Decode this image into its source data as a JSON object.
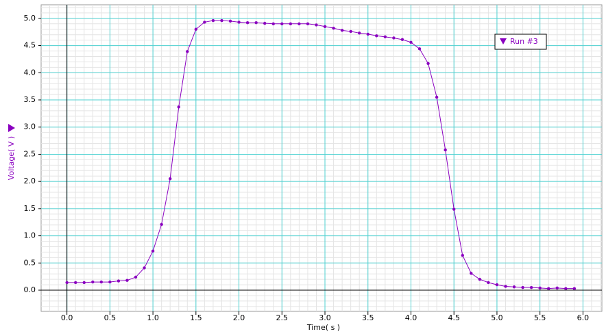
{
  "chart_data": {
    "type": "line",
    "x_label": "Time( s )",
    "y_label": "Voltage( V )",
    "x": [
      0.0,
      0.1,
      0.2,
      0.3,
      0.4,
      0.5,
      0.6,
      0.7,
      0.8,
      0.9,
      1.0,
      1.1,
      1.2,
      1.3,
      1.4,
      1.5,
      1.6,
      1.7,
      1.8,
      1.9,
      2.0,
      2.1,
      2.2,
      2.3,
      2.4,
      2.5,
      2.6,
      2.7,
      2.8,
      2.9,
      3.0,
      3.1,
      3.2,
      3.3,
      3.4,
      3.5,
      3.6,
      3.7,
      3.8,
      3.9,
      4.0,
      4.1,
      4.2,
      4.3,
      4.4,
      4.5,
      4.6,
      4.7,
      4.8,
      4.9,
      5.0,
      5.1,
      5.2,
      5.3,
      5.4,
      5.5,
      5.6,
      5.7,
      5.8,
      5.9
    ],
    "series": [
      {
        "name": "Run #3",
        "color": "#8a00c0",
        "values": [
          0.14,
          0.14,
          0.14,
          0.15,
          0.15,
          0.15,
          0.17,
          0.18,
          0.24,
          0.41,
          0.72,
          1.21,
          2.05,
          3.37,
          4.39,
          4.8,
          4.93,
          4.96,
          4.96,
          4.95,
          4.93,
          4.92,
          4.92,
          4.91,
          4.9,
          4.9,
          4.9,
          4.9,
          4.9,
          4.88,
          4.85,
          4.82,
          4.78,
          4.76,
          4.73,
          4.71,
          4.68,
          4.66,
          4.64,
          4.61,
          4.56,
          4.44,
          4.17,
          3.55,
          2.58,
          1.49,
          0.64,
          0.31,
          0.2,
          0.14,
          0.1,
          0.07,
          0.06,
          0.05,
          0.05,
          0.04,
          0.03,
          0.04,
          0.03,
          0.03
        ]
      }
    ],
    "xlim": [
      -0.3,
      6.22
    ],
    "ylim": [
      -0.39,
      5.25
    ],
    "xticks": [
      {
        "value": 0,
        "label": "0.0"
      },
      {
        "value": 0.5,
        "label": "0.5"
      },
      {
        "value": 1,
        "label": "1.0"
      },
      {
        "value": 1.5,
        "label": "1.5"
      },
      {
        "value": 2,
        "label": "2.0"
      },
      {
        "value": 2.5,
        "label": "2.5"
      },
      {
        "value": 3,
        "label": "3.0"
      },
      {
        "value": 3.5,
        "label": "3.5"
      },
      {
        "value": 4,
        "label": "4.0"
      },
      {
        "value": 4.5,
        "label": "4.5"
      },
      {
        "value": 5,
        "label": "5.0"
      },
      {
        "value": 5.5,
        "label": "5.5"
      },
      {
        "value": 6,
        "label": "6.0"
      }
    ],
    "yticks": [
      {
        "value": 0,
        "label": "0.0"
      },
      {
        "value": 0.5,
        "label": "0.5"
      },
      {
        "value": 1,
        "label": "1.0"
      },
      {
        "value": 1.5,
        "label": "1.5"
      },
      {
        "value": 2,
        "label": "2.0"
      },
      {
        "value": 2.5,
        "label": "2.5"
      },
      {
        "value": 3,
        "label": "3.0"
      },
      {
        "value": 3.5,
        "label": "3.5"
      },
      {
        "value": 4,
        "label": "4.0"
      },
      {
        "value": 4.5,
        "label": "4.5"
      },
      {
        "value": 5,
        "label": "5.0"
      }
    ],
    "grid": true,
    "legend": "top-right"
  }
}
